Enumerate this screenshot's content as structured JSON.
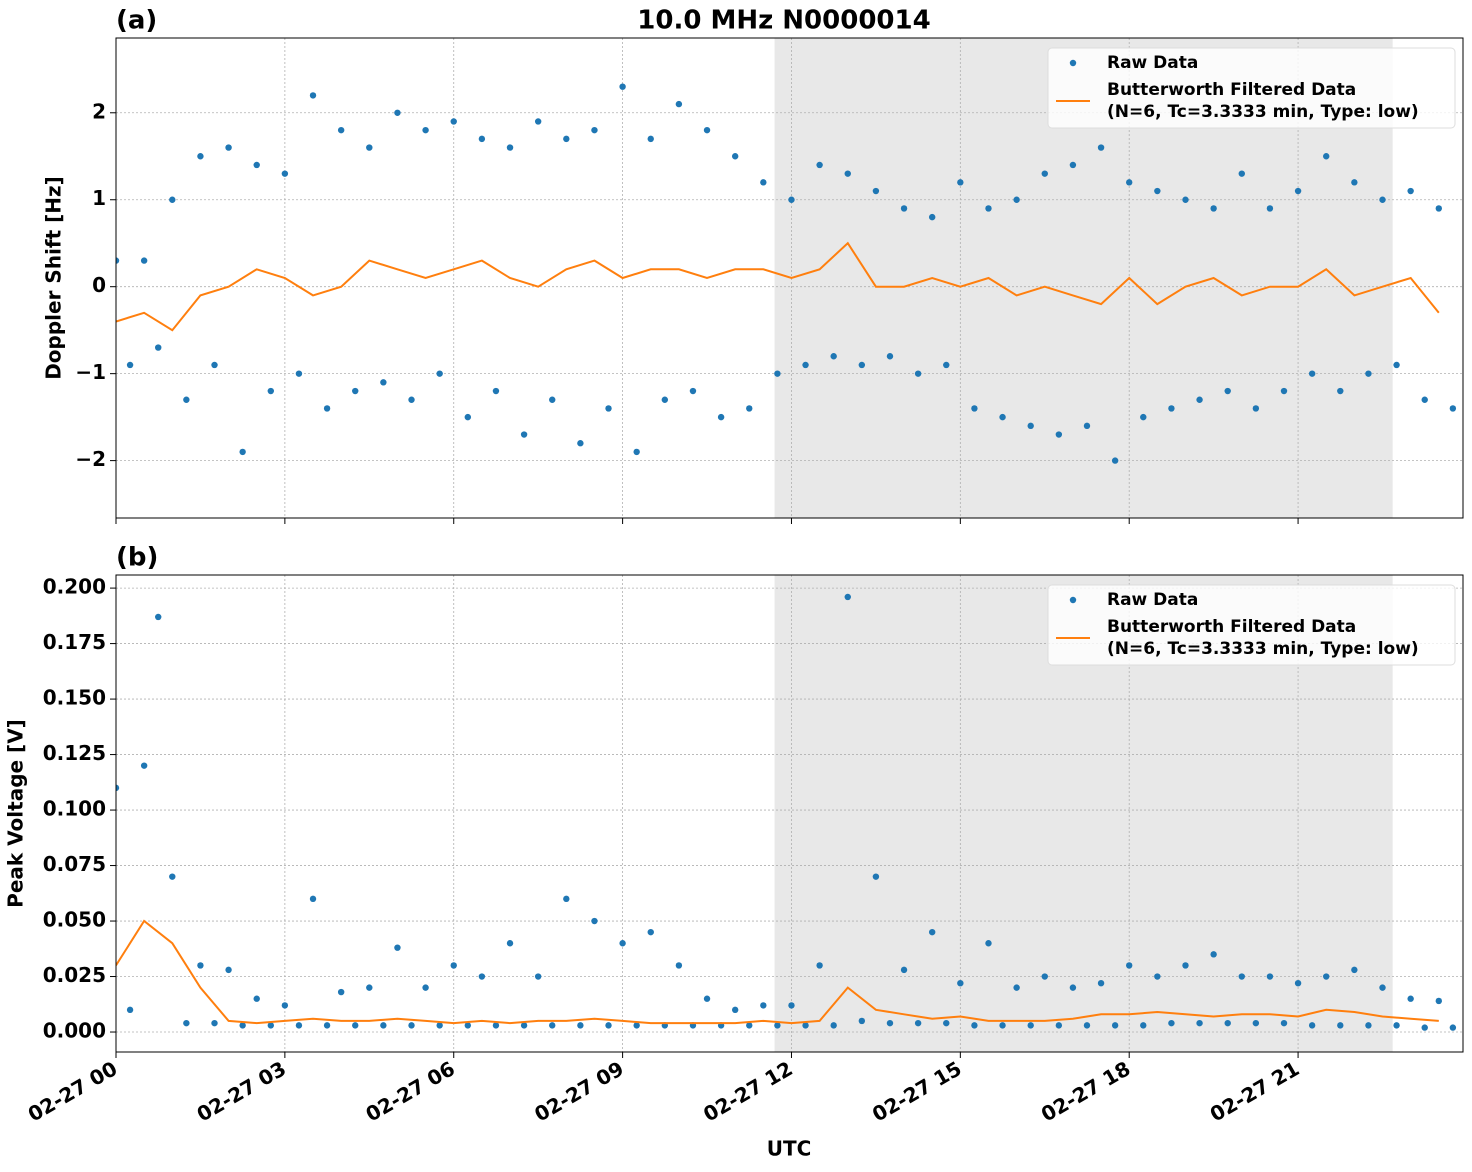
{
  "chart_data": [
    {
      "type": "scatter-line",
      "title": "10.0 MHz N0000014",
      "panel_label": "(a)",
      "y_label": "Doppler Shift [Hz]",
      "xlim": [
        0,
        23.93
      ],
      "xticks": [
        0,
        3,
        6,
        9,
        12,
        15,
        18,
        21
      ],
      "ylim": [
        -2.66,
        2.86
      ],
      "yticks": [
        {
          "value": -2,
          "label": "−2"
        },
        {
          "value": -1,
          "label": "−1"
        },
        0,
        1,
        2
      ],
      "grid": true,
      "legend": "upper right",
      "shaded_region": [
        11.7,
        22.68
      ],
      "series": [
        {
          "name": "Raw Data",
          "kind": "points",
          "color": "#1f77b4",
          "x": [
            0,
            0.25,
            0.5,
            0.75,
            1,
            1.25,
            1.5,
            1.75,
            2,
            2.25,
            2.5,
            2.75,
            3,
            3.25,
            3.5,
            3.75,
            4,
            4.25,
            4.5,
            4.75,
            5,
            5.25,
            5.5,
            5.75,
            6,
            6.25,
            6.5,
            6.75,
            7,
            7.25,
            7.5,
            7.75,
            8,
            8.25,
            8.5,
            8.75,
            9,
            9.25,
            9.5,
            9.75,
            10,
            10.25,
            10.5,
            10.75,
            11,
            11.25,
            11.5,
            11.75,
            12,
            12.25,
            12.5,
            12.75,
            13,
            13.25,
            13.5,
            13.75,
            14,
            14.25,
            14.5,
            14.75,
            15,
            15.25,
            15.5,
            15.75,
            16,
            16.25,
            16.5,
            16.75,
            17,
            17.25,
            17.5,
            17.75,
            18,
            18.25,
            18.5,
            18.75,
            19,
            19.25,
            19.5,
            19.75,
            20,
            20.25,
            20.5,
            20.75,
            21,
            21.25,
            21.5,
            21.75,
            22,
            22.25,
            22.5,
            22.75,
            23,
            23.25,
            23.5,
            23.75
          ],
          "values": [
            0.3,
            -0.9,
            0.3,
            -0.7,
            1.0,
            -1.3,
            1.5,
            -0.9,
            1.6,
            -1.9,
            1.4,
            -1.2,
            1.3,
            -1.0,
            2.2,
            -1.4,
            1.8,
            -1.2,
            1.6,
            -1.1,
            2.0,
            -1.3,
            1.8,
            -1.0,
            1.9,
            -1.5,
            1.7,
            -1.2,
            1.6,
            -1.7,
            1.9,
            -1.3,
            1.7,
            -1.8,
            1.8,
            -1.4,
            2.3,
            -1.9,
            1.7,
            -1.3,
            2.1,
            -1.2,
            1.8,
            -1.5,
            1.5,
            -1.4,
            1.2,
            -1.0,
            1.0,
            -0.9,
            1.4,
            -0.8,
            1.3,
            -0.9,
            1.1,
            -0.8,
            0.9,
            -1.0,
            0.8,
            -0.9,
            1.2,
            -1.4,
            0.9,
            -1.5,
            1.0,
            -1.6,
            1.3,
            -1.7,
            1.4,
            -1.6,
            1.6,
            -2.0,
            1.2,
            -1.5,
            1.1,
            -1.4,
            1.0,
            -1.3,
            0.9,
            -1.2,
            1.3,
            -1.4,
            0.9,
            -1.2,
            1.1,
            -1.0,
            1.5,
            -1.2,
            1.2,
            -1.0,
            1.0,
            -0.9,
            1.1,
            -1.3,
            0.9,
            -1.4
          ]
        },
        {
          "name": "Butterworth Filtered Data\n(N=6, Tc=3.3333 min, Type: low)",
          "kind": "line",
          "color": "#ff7f0e",
          "x": [
            0,
            0.5,
            1,
            1.5,
            2,
            2.5,
            3,
            3.5,
            4,
            4.5,
            5,
            5.5,
            6,
            6.5,
            7,
            7.5,
            8,
            8.5,
            9,
            9.5,
            10,
            10.5,
            11,
            11.5,
            12,
            12.5,
            13,
            13.5,
            14,
            14.5,
            15,
            15.5,
            16,
            16.5,
            17,
            17.5,
            18,
            18.5,
            19,
            19.5,
            20,
            20.5,
            21,
            21.5,
            22,
            22.5,
            23,
            23.5
          ],
          "values": [
            -0.4,
            -0.3,
            -0.5,
            -0.1,
            0.0,
            0.2,
            0.1,
            -0.1,
            0.0,
            0.3,
            0.2,
            0.1,
            0.2,
            0.3,
            0.1,
            0.0,
            0.2,
            0.3,
            0.1,
            0.2,
            0.2,
            0.1,
            0.2,
            0.2,
            0.1,
            0.2,
            0.5,
            0.0,
            0.0,
            0.1,
            0.0,
            0.1,
            -0.1,
            0.0,
            -0.1,
            -0.2,
            0.1,
            -0.2,
            0.0,
            0.1,
            -0.1,
            0.0,
            0.0,
            0.2,
            -0.1,
            0.0,
            0.1,
            -0.3
          ]
        }
      ]
    },
    {
      "type": "scatter-line",
      "panel_label": "(b)",
      "y_label": "Peak Voltage [V]",
      "x_label": "UTC",
      "xlim": [
        0,
        23.93
      ],
      "xticks": [
        {
          "value": 0,
          "label": "02-27 00"
        },
        {
          "value": 3,
          "label": "02-27 03"
        },
        {
          "value": 6,
          "label": "02-27 06"
        },
        {
          "value": 9,
          "label": "02-27 09"
        },
        {
          "value": 12,
          "label": "02-27 12"
        },
        {
          "value": 15,
          "label": "02-27 15"
        },
        {
          "value": 18,
          "label": "02-27 18"
        },
        {
          "value": 21,
          "label": "02-27 21"
        }
      ],
      "ylim": [
        -0.009,
        0.2059
      ],
      "yticks": [
        {
          "value": 0,
          "label": "0.000"
        },
        {
          "value": 0.025,
          "label": "0.025"
        },
        {
          "value": 0.05,
          "label": "0.050"
        },
        {
          "value": 0.075,
          "label": "0.075"
        },
        {
          "value": 0.1,
          "label": "0.100"
        },
        {
          "value": 0.125,
          "label": "0.125"
        },
        {
          "value": 0.15,
          "label": "0.150"
        },
        {
          "value": 0.175,
          "label": "0.175"
        },
        {
          "value": 0.2,
          "label": "0.200"
        }
      ],
      "grid": true,
      "legend": "upper right",
      "shaded_region": [
        11.7,
        22.68
      ],
      "series": [
        {
          "name": "Raw Data",
          "kind": "points",
          "color": "#1f77b4",
          "x": [
            0,
            0.25,
            0.5,
            0.75,
            1,
            1.25,
            1.5,
            1.75,
            2,
            2.25,
            2.5,
            2.75,
            3,
            3.25,
            3.5,
            3.75,
            4,
            4.25,
            4.5,
            4.75,
            5,
            5.25,
            5.5,
            5.75,
            6,
            6.25,
            6.5,
            6.75,
            7,
            7.25,
            7.5,
            7.75,
            8,
            8.25,
            8.5,
            8.75,
            9,
            9.25,
            9.5,
            9.75,
            10,
            10.25,
            10.5,
            10.75,
            11,
            11.25,
            11.5,
            11.75,
            12,
            12.25,
            12.5,
            12.75,
            13,
            13.25,
            13.5,
            13.75,
            14,
            14.25,
            14.5,
            14.75,
            15,
            15.25,
            15.5,
            15.75,
            16,
            16.25,
            16.5,
            16.75,
            17,
            17.25,
            17.5,
            17.75,
            18,
            18.25,
            18.5,
            18.75,
            19,
            19.25,
            19.5,
            19.75,
            20,
            20.25,
            20.5,
            20.75,
            21,
            21.25,
            21.5,
            21.75,
            22,
            22.25,
            22.5,
            22.75,
            23,
            23.25,
            23.5,
            23.75
          ],
          "values": [
            0.11,
            0.01,
            0.12,
            0.187,
            0.07,
            0.004,
            0.03,
            0.004,
            0.028,
            0.003,
            0.015,
            0.003,
            0.012,
            0.003,
            0.06,
            0.003,
            0.018,
            0.003,
            0.02,
            0.003,
            0.038,
            0.003,
            0.02,
            0.003,
            0.03,
            0.003,
            0.025,
            0.003,
            0.04,
            0.003,
            0.025,
            0.003,
            0.06,
            0.003,
            0.05,
            0.003,
            0.04,
            0.003,
            0.045,
            0.003,
            0.03,
            0.003,
            0.015,
            0.003,
            0.01,
            0.003,
            0.012,
            0.003,
            0.012,
            0.003,
            0.03,
            0.003,
            0.196,
            0.005,
            0.07,
            0.004,
            0.028,
            0.004,
            0.045,
            0.004,
            0.022,
            0.003,
            0.04,
            0.003,
            0.02,
            0.003,
            0.025,
            0.003,
            0.02,
            0.003,
            0.022,
            0.003,
            0.03,
            0.003,
            0.025,
            0.004,
            0.03,
            0.004,
            0.035,
            0.004,
            0.025,
            0.004,
            0.025,
            0.004,
            0.022,
            0.003,
            0.025,
            0.003,
            0.028,
            0.003,
            0.02,
            0.003,
            0.015,
            0.002,
            0.014,
            0.002
          ]
        },
        {
          "name": "Butterworth Filtered Data\n(N=6, Tc=3.3333 min, Type: low)",
          "kind": "line",
          "color": "#ff7f0e",
          "x": [
            0,
            0.5,
            1,
            1.5,
            2,
            2.5,
            3,
            3.5,
            4,
            4.5,
            5,
            5.5,
            6,
            6.5,
            7,
            7.5,
            8,
            8.5,
            9,
            9.5,
            10,
            10.5,
            11,
            11.5,
            12,
            12.5,
            13,
            13.5,
            14,
            14.5,
            15,
            15.5,
            16,
            16.5,
            17,
            17.5,
            18,
            18.5,
            19,
            19.5,
            20,
            20.5,
            21,
            21.5,
            22,
            22.5,
            23,
            23.5
          ],
          "values": [
            0.03,
            0.05,
            0.04,
            0.02,
            0.005,
            0.004,
            0.005,
            0.006,
            0.005,
            0.005,
            0.006,
            0.005,
            0.004,
            0.005,
            0.004,
            0.005,
            0.005,
            0.006,
            0.005,
            0.004,
            0.004,
            0.004,
            0.004,
            0.005,
            0.004,
            0.005,
            0.02,
            0.01,
            0.008,
            0.006,
            0.007,
            0.005,
            0.005,
            0.005,
            0.006,
            0.008,
            0.008,
            0.009,
            0.008,
            0.007,
            0.008,
            0.008,
            0.007,
            0.01,
            0.009,
            0.007,
            0.006,
            0.005
          ]
        }
      ]
    }
  ]
}
